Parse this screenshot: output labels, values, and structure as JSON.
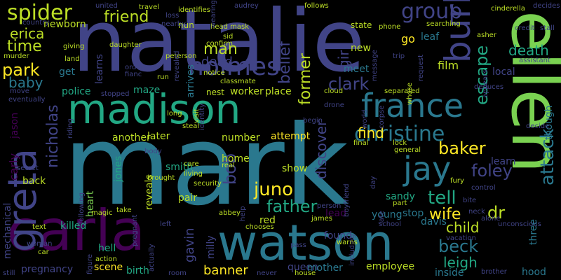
{
  "words": [
    {
      "text": "mark",
      "color": "#2a788e"
    },
    {
      "text": "natalie",
      "color": "#414487"
    },
    {
      "text": "ellen",
      "color": "#7ad151"
    },
    {
      "text": "madison",
      "color": "#22a884"
    },
    {
      "text": "watson",
      "color": "#2a788e"
    },
    {
      "text": "carla",
      "color": "#440154"
    },
    {
      "text": "greta",
      "color": "#414487"
    },
    {
      "text": "france",
      "color": "#2a788e"
    },
    {
      "text": "burke",
      "color": "#414487"
    },
    {
      "text": "christine",
      "color": "#2a788e"
    },
    {
      "text": "jay",
      "color": "#2a788e"
    },
    {
      "text": "holmes",
      "color": "#414487"
    },
    {
      "text": "spider",
      "color": "#bddf26"
    },
    {
      "text": "friend",
      "color": "#bddf26"
    },
    {
      "text": "group",
      "color": "#414487"
    },
    {
      "text": "clark",
      "color": "#414487"
    },
    {
      "text": "erica",
      "color": "#bddf26"
    },
    {
      "text": "time",
      "color": "#bddf26"
    },
    {
      "text": "park",
      "color": "#fde725"
    },
    {
      "text": "baby",
      "color": "#2a788e"
    },
    {
      "text": "man",
      "color": "#bddf26"
    },
    {
      "text": "dead",
      "color": "#414487"
    },
    {
      "text": "belief",
      "color": "#414487"
    },
    {
      "text": "girl",
      "color": "#414487"
    },
    {
      "text": "former",
      "color": "#bddf26"
    },
    {
      "text": "escape",
      "color": "#22a884"
    },
    {
      "text": "death",
      "color": "#22a884"
    },
    {
      "text": "nicholas",
      "color": "#414487"
    },
    {
      "text": "baker",
      "color": "#fde725"
    },
    {
      "text": "foley",
      "color": "#414487"
    },
    {
      "text": "attack",
      "color": "#2a788e"
    },
    {
      "text": "juno",
      "color": "#fde725"
    },
    {
      "text": "bob",
      "color": "#414487"
    },
    {
      "text": "father",
      "color": "#22a884"
    },
    {
      "text": "tell",
      "color": "#22a884"
    },
    {
      "text": "wife",
      "color": "#fde725"
    },
    {
      "text": "child",
      "color": "#bddf26"
    },
    {
      "text": "beck",
      "color": "#2a788e"
    },
    {
      "text": "leigh",
      "color": "#22a884"
    },
    {
      "text": "dr",
      "color": "#bddf26"
    },
    {
      "text": "discover",
      "color": "#414487"
    },
    {
      "text": "gavin",
      "color": "#414487"
    },
    {
      "text": "banner",
      "color": "#fde725"
    },
    {
      "text": "queen",
      "color": "#414487"
    },
    {
      "text": "find",
      "color": "#fde725"
    },
    {
      "text": "killed",
      "color": "#22a884"
    },
    {
      "text": "heart",
      "color": "#7ad151"
    },
    {
      "text": "hell",
      "color": "#22a884"
    },
    {
      "text": "birth",
      "color": "#22a884"
    },
    {
      "text": "scene",
      "color": "#fde725"
    },
    {
      "text": "pregnancy",
      "color": "#414487"
    },
    {
      "text": "mechanical",
      "color": "#414487"
    },
    {
      "text": "carly",
      "color": "#440154"
    },
    {
      "text": "jason",
      "color": "#440154"
    },
    {
      "text": "back",
      "color": "#bddf26"
    },
    {
      "text": "police",
      "color": "#22a884"
    },
    {
      "text": "maze",
      "color": "#22a884"
    },
    {
      "text": "arrives",
      "color": "#2a788e"
    },
    {
      "text": "meet",
      "color": "#2a788e"
    },
    {
      "text": "new",
      "color": "#bddf26"
    },
    {
      "text": "go",
      "color": "#fde725"
    },
    {
      "text": "film",
      "color": "#bddf26"
    },
    {
      "text": "learns",
      "color": "#414487"
    },
    {
      "text": "get",
      "color": "#2a788e"
    },
    {
      "text": "number",
      "color": "#bddf26"
    },
    {
      "text": "another",
      "color": "#bddf26"
    },
    {
      "text": "later",
      "color": "#bddf26"
    },
    {
      "text": "smith",
      "color": "#22a884"
    },
    {
      "text": "jones",
      "color": "#22a884"
    },
    {
      "text": "reveals",
      "color": "#bddf26"
    },
    {
      "text": "pair",
      "color": "#bddf26"
    },
    {
      "text": "milly",
      "color": "#414487"
    },
    {
      "text": "home",
      "color": "#bddf26"
    },
    {
      "text": "red",
      "color": "#bddf26"
    },
    {
      "text": "show",
      "color": "#bddf26"
    },
    {
      "text": "young",
      "color": "#2a788e"
    },
    {
      "text": "sandy",
      "color": "#22a884"
    },
    {
      "text": "stop",
      "color": "#2a788e"
    },
    {
      "text": "davis",
      "color": "#2a788e"
    },
    {
      "text": "mother",
      "color": "#2a788e"
    },
    {
      "text": "employee",
      "color": "#bddf26"
    },
    {
      "text": "inside",
      "color": "#2a788e"
    },
    {
      "text": "hood",
      "color": "#2a788e"
    },
    {
      "text": "learn",
      "color": "#414487"
    },
    {
      "text": "three",
      "color": "#2a788e"
    },
    {
      "text": "though",
      "color": "#2a788e"
    },
    {
      "text": "local",
      "color": "#414487"
    },
    {
      "text": "place",
      "color": "#bddf26"
    },
    {
      "text": "worker",
      "color": "#bddf26"
    },
    {
      "text": "nest",
      "color": "#bddf26"
    },
    {
      "text": "attempt",
      "color": "#fde725"
    },
    {
      "text": "lead",
      "color": "#440154"
    },
    {
      "text": "found",
      "color": "#414487"
    },
    {
      "text": "leaf",
      "color": "#2a788e"
    },
    {
      "text": "state",
      "color": "#bddf26"
    },
    {
      "text": "newborn",
      "color": "#bddf26"
    },
    {
      "text": "nun",
      "color": "#bddf26"
    },
    {
      "text": "head mask",
      "color": "#bddf26"
    },
    {
      "text": "sid",
      "color": "#bddf26"
    },
    {
      "text": "confirm",
      "color": "#bddf26"
    },
    {
      "text": "notice",
      "color": "#bddf26"
    },
    {
      "text": "cloud",
      "color": "#bddf26"
    },
    {
      "text": "drone",
      "color": "#414487"
    },
    {
      "text": "separated",
      "color": "#bddf26"
    },
    {
      "text": "request",
      "color": "#414487"
    },
    {
      "text": "security",
      "color": "#bddf26"
    },
    {
      "text": "real",
      "color": "#bddf26"
    },
    {
      "text": "help",
      "color": "#414487"
    },
    {
      "text": "riding",
      "color": "#414487"
    },
    {
      "text": "following",
      "color": "#414487"
    },
    {
      "text": "left",
      "color": "#414487"
    },
    {
      "text": "brother",
      "color": "#414487"
    },
    {
      "text": "boyfriend",
      "color": "#414487"
    },
    {
      "text": "chooses",
      "color": "#bddf26"
    },
    {
      "text": "daughter",
      "color": "#bddf26"
    },
    {
      "text": "land",
      "color": "#bddf26"
    },
    {
      "text": "giving",
      "color": "#bddf26"
    },
    {
      "text": "murder",
      "color": "#bddf26"
    },
    {
      "text": "peterson",
      "color": "#bddf26"
    },
    {
      "text": "travel",
      "color": "#bddf26"
    },
    {
      "text": "classmate",
      "color": "#bddf26"
    },
    {
      "text": "phone",
      "color": "#bddf26"
    },
    {
      "text": "asher",
      "color": "#bddf26"
    },
    {
      "text": "appears",
      "color": "#414487"
    },
    {
      "text": "decide",
      "color": "#414487"
    },
    {
      "text": "decides",
      "color": "#414487"
    },
    {
      "text": "cinderella",
      "color": "#bddf26"
    },
    {
      "text": "searching",
      "color": "#bddf26"
    },
    {
      "text": "follows",
      "color": "#bddf26"
    },
    {
      "text": "stopped",
      "color": "#414487"
    },
    {
      "text": "move",
      "color": "#414487"
    },
    {
      "text": "eventually",
      "color": "#414487"
    },
    {
      "text": "secret",
      "color": "#414487"
    },
    {
      "text": "magic",
      "color": "#bddf26"
    },
    {
      "text": "take",
      "color": "#bddf26"
    },
    {
      "text": "text",
      "color": "#bddf26"
    },
    {
      "text": "woman",
      "color": "#414487"
    },
    {
      "text": "car",
      "color": "#bddf26"
    },
    {
      "text": "action",
      "color": "#bddf26"
    },
    {
      "text": "still",
      "color": "#414487"
    },
    {
      "text": "room",
      "color": "#414487"
    },
    {
      "text": "never",
      "color": "#414487"
    },
    {
      "text": "house",
      "color": "#bddf26"
    },
    {
      "text": "pass",
      "color": "#414487"
    },
    {
      "text": "warns",
      "color": "#bddf26"
    },
    {
      "text": "james",
      "color": "#bddf26"
    },
    {
      "text": "school",
      "color": "#414487"
    },
    {
      "text": "vacation",
      "color": "#414487"
    },
    {
      "text": "alone",
      "color": "#414487"
    },
    {
      "text": "neck",
      "color": "#414487"
    },
    {
      "text": "unconscious",
      "color": "#414487"
    },
    {
      "text": "control",
      "color": "#414487"
    },
    {
      "text": "bite",
      "color": "#414487"
    },
    {
      "text": "fury",
      "color": "#bddf26"
    },
    {
      "text": "lock",
      "color": "#bddf26"
    },
    {
      "text": "final",
      "color": "#bddf26"
    },
    {
      "text": "general",
      "color": "#bddf26"
    },
    {
      "text": "part",
      "color": "#bddf26"
    },
    {
      "text": "person",
      "color": "#414487"
    },
    {
      "text": "world",
      "color": "#414487"
    },
    {
      "text": "corpse",
      "color": "#414487"
    },
    {
      "text": "whose",
      "color": "#bddf26"
    },
    {
      "text": "begin",
      "color": "#414487"
    },
    {
      "text": "brought",
      "color": "#bddf26"
    },
    {
      "text": "living",
      "color": "#bddf26"
    },
    {
      "text": "care",
      "color": "#bddf26"
    },
    {
      "text": "abbey",
      "color": "#bddf26"
    },
    {
      "text": "body",
      "color": "#414487"
    },
    {
      "text": "visit",
      "color": "#bddf26"
    },
    {
      "text": "identity",
      "color": "#414487"
    },
    {
      "text": "steal",
      "color": "#bddf26"
    },
    {
      "text": "long",
      "color": "#bddf26"
    },
    {
      "text": "run",
      "color": "#bddf26"
    },
    {
      "text": "order",
      "color": "#414487"
    },
    {
      "text": "fianc",
      "color": "#414487"
    },
    {
      "text": "revealed",
      "color": "#414487"
    },
    {
      "text": "united",
      "color": "#414487"
    },
    {
      "text": "country",
      "color": "#414487"
    },
    {
      "text": "identifies",
      "color": "#bddf26"
    },
    {
      "text": "nearby",
      "color": "#414487"
    },
    {
      "text": "loss",
      "color": "#414487"
    },
    {
      "text": "audrey",
      "color": "#414487"
    },
    {
      "text": "wearing",
      "color": "#414487"
    },
    {
      "text": "credit",
      "color": "#414487"
    },
    {
      "text": "stall",
      "color": "#414487"
    },
    {
      "text": "assistant",
      "color": "#414487"
    },
    {
      "text": "trip",
      "color": "#414487"
    },
    {
      "text": "message",
      "color": "#414487"
    },
    {
      "text": "late",
      "color": "#414487"
    },
    {
      "text": "day",
      "color": "#414487"
    },
    {
      "text": "including",
      "color": "#414487"
    },
    {
      "text": "actually",
      "color": "#414487"
    },
    {
      "text": "pregnant",
      "color": "#414487"
    },
    {
      "text": "figure",
      "color": "#414487"
    },
    {
      "text": "deduces",
      "color": "#414487"
    }
  ]
}
